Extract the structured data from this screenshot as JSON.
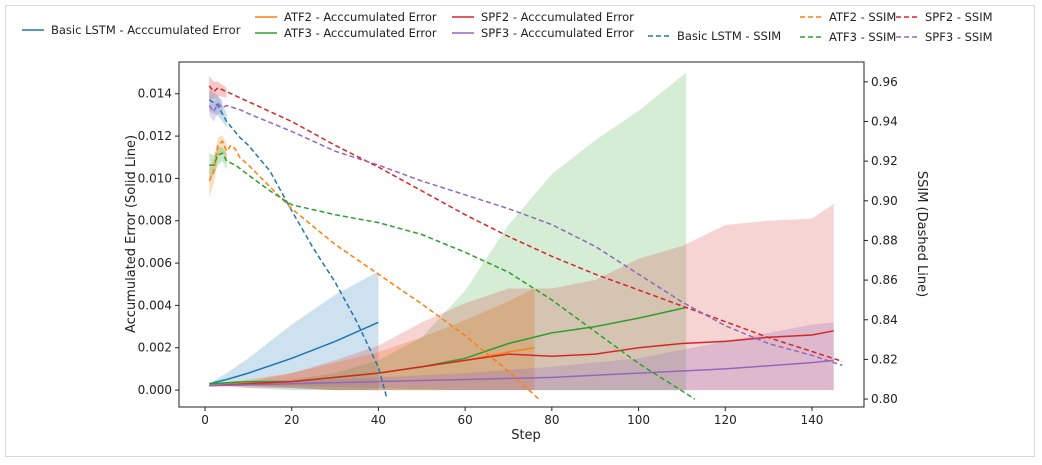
{
  "chart_data": {
    "type": "line",
    "xlabel": "Step",
    "ylabel_left": "Accumulated Error (Solid Line)",
    "ylabel_right": "SSIM (Dashed Line)",
    "xlim": [
      -6,
      152
    ],
    "ylim_left": [
      -0.0008,
      0.0155
    ],
    "ylim_right": [
      0.796,
      0.97
    ],
    "x_ticks": [
      0,
      20,
      40,
      60,
      80,
      100,
      120,
      140
    ],
    "y_left_ticks": [
      0.0,
      0.002,
      0.004,
      0.006,
      0.008,
      0.01,
      0.012,
      0.014
    ],
    "y_left_tick_labels": [
      "0.000",
      "0.002",
      "0.004",
      "0.006",
      "0.008",
      "0.010",
      "0.012",
      "0.014"
    ],
    "y_right_ticks": [
      0.8,
      0.82,
      0.84,
      0.86,
      0.88,
      0.9,
      0.92,
      0.94,
      0.96
    ],
    "y_right_tick_labels": [
      "0.80",
      "0.82",
      "0.84",
      "0.86",
      "0.88",
      "0.90",
      "0.92",
      "0.94",
      "0.96"
    ],
    "grid": false,
    "legend_position": "top",
    "legend": [
      {
        "label": "Basic LSTM - Acccumulated Error",
        "color": "#1f77b4",
        "style": "solid"
      },
      {
        "label": "ATF2 - Acccumulated Error",
        "color": "#ff7f0e",
        "style": "solid"
      },
      {
        "label": "ATF3 - Acccumulated Error",
        "color": "#2ca02c",
        "style": "solid"
      },
      {
        "label": "SPF2 - Acccumulated Error",
        "color": "#d62728",
        "style": "solid"
      },
      {
        "label": "SPF3 - Acccumulated Error",
        "color": "#9467bd",
        "style": "solid"
      },
      {
        "label": "Basic LSTM - SSIM",
        "color": "#1f77b4",
        "style": "dashed"
      },
      {
        "label": "ATF2 - SSIM",
        "color": "#ff7f0e",
        "style": "dashed"
      },
      {
        "label": "ATF3 - SSIM",
        "color": "#2ca02c",
        "style": "dashed"
      },
      {
        "label": "SPF2 - SSIM",
        "color": "#d62728",
        "style": "dashed"
      },
      {
        "label": "SPF3 - SSIM",
        "color": "#9467bd",
        "style": "dashed"
      }
    ],
    "error_series": [
      {
        "id": "basic",
        "color": "#1f77b4",
        "band_opacity": 0.22,
        "x": [
          1,
          5,
          10,
          20,
          30,
          40
        ],
        "y": [
          0.0003,
          0.0005,
          0.0008,
          0.0015,
          0.0023,
          0.0032
        ],
        "upper": [
          0.0003,
          0.0008,
          0.0015,
          0.0031,
          0.0045,
          0.0056
        ],
        "lower": [
          0.0002,
          0.0002,
          0.0001,
          0.0,
          0.0,
          0.0
        ]
      },
      {
        "id": "atf2",
        "color": "#ff7f0e",
        "band_opacity": 0.28,
        "x": [
          1,
          10,
          20,
          30,
          40,
          50,
          60,
          70,
          76
        ],
        "y": [
          0.0002,
          0.0003,
          0.0004,
          0.0006,
          0.0008,
          0.0011,
          0.0014,
          0.0018,
          0.002
        ],
        "upper": [
          0.0003,
          0.0005,
          0.0008,
          0.0013,
          0.0018,
          0.0025,
          0.0033,
          0.0042,
          0.0048
        ],
        "lower": [
          0.0002,
          0.0001,
          0.0001,
          0.0,
          0.0,
          0.0,
          0.0,
          0.0,
          0.0
        ]
      },
      {
        "id": "atf3",
        "color": "#2ca02c",
        "band_opacity": 0.2,
        "x": [
          1,
          10,
          20,
          30,
          40,
          50,
          60,
          70,
          80,
          90,
          100,
          111
        ],
        "y": [
          0.0003,
          0.0004,
          0.0004,
          0.0006,
          0.0008,
          0.0011,
          0.0015,
          0.0022,
          0.0027,
          0.003,
          0.0034,
          0.0039
        ],
        "upper": [
          0.0003,
          0.0004,
          0.0005,
          0.0008,
          0.0014,
          0.0025,
          0.0047,
          0.0078,
          0.0102,
          0.0118,
          0.0132,
          0.015
        ],
        "lower": [
          0.0002,
          0.0002,
          0.0001,
          0.0,
          0.0,
          0.0,
          0.0,
          0.0,
          0.0,
          0.0,
          0.0,
          0.0
        ]
      },
      {
        "id": "spf2",
        "color": "#d62728",
        "band_opacity": 0.2,
        "x": [
          1,
          10,
          20,
          30,
          40,
          50,
          60,
          70,
          80,
          90,
          100,
          110,
          120,
          130,
          140,
          145
        ],
        "y": [
          0.0002,
          0.0003,
          0.0004,
          0.0006,
          0.0008,
          0.0011,
          0.0014,
          0.0017,
          0.0016,
          0.0017,
          0.002,
          0.0022,
          0.0023,
          0.0025,
          0.0026,
          0.0028
        ],
        "upper": [
          0.0003,
          0.0004,
          0.0008,
          0.0014,
          0.0021,
          0.0032,
          0.0041,
          0.0048,
          0.0048,
          0.0052,
          0.0062,
          0.0068,
          0.0078,
          0.008,
          0.0081,
          0.0088
        ],
        "lower": [
          0.0002,
          0.0002,
          0.0001,
          0.0,
          0.0,
          0.0,
          0.0,
          0.0,
          0.0,
          0.0,
          0.0,
          0.0,
          0.0,
          0.0,
          0.0,
          0.0
        ]
      },
      {
        "id": "spf3",
        "color": "#9467bd",
        "band_opacity": 0.25,
        "x": [
          1,
          20,
          40,
          60,
          80,
          100,
          120,
          140,
          145
        ],
        "y": [
          0.0002,
          0.0003,
          0.0004,
          0.0005,
          0.0006,
          0.0008,
          0.001,
          0.0013,
          0.0014
        ],
        "upper": [
          0.0002,
          0.0004,
          0.0006,
          0.0008,
          0.0011,
          0.0015,
          0.0023,
          0.0031,
          0.0032
        ],
        "lower": [
          0.0002,
          0.0002,
          0.0001,
          0.0,
          0.0,
          0.0,
          0.0,
          0.0,
          0.0
        ]
      }
    ],
    "ssim_series": [
      {
        "id": "basic",
        "color": "#1f77b4",
        "x": [
          1,
          3,
          5,
          8,
          10,
          15,
          20,
          25,
          30,
          35,
          40,
          42
        ],
        "y": [
          0.951,
          0.948,
          0.94,
          0.932,
          0.928,
          0.915,
          0.895,
          0.876,
          0.859,
          0.839,
          0.816,
          0.8
        ],
        "band_upper": [
          0.956,
          0.953,
          0.944
        ],
        "band_lower": [
          0.945,
          0.943,
          0.937
        ]
      },
      {
        "id": "atf2",
        "color": "#ff7f0e",
        "x": [
          1,
          2,
          3,
          4,
          5,
          6,
          7,
          8,
          10,
          15,
          20,
          30,
          40,
          50,
          60,
          70,
          77
        ],
        "y": [
          0.91,
          0.915,
          0.928,
          0.93,
          0.925,
          0.928,
          0.926,
          0.922,
          0.918,
          0.907,
          0.896,
          0.878,
          0.863,
          0.848,
          0.832,
          0.814,
          0.8
        ],
        "band_upper": [
          0.916,
          0.921,
          0.932,
          0.933,
          0.929
        ],
        "band_lower": [
          0.902,
          0.908,
          0.922,
          0.925,
          0.92
        ]
      },
      {
        "id": "atf3",
        "color": "#2ca02c",
        "x": [
          1,
          2,
          3,
          4,
          5,
          6,
          7,
          10,
          15,
          20,
          30,
          40,
          50,
          60,
          70,
          80,
          90,
          100,
          113
        ],
        "y": [
          0.918,
          0.918,
          0.923,
          0.924,
          0.92,
          0.919,
          0.918,
          0.913,
          0.905,
          0.898,
          0.893,
          0.889,
          0.883,
          0.874,
          0.864,
          0.85,
          0.834,
          0.818,
          0.8
        ],
        "band_upper": [
          0.924,
          0.923,
          0.927,
          0.927,
          0.924
        ],
        "band_lower": [
          0.911,
          0.913,
          0.918,
          0.92,
          0.916
        ]
      },
      {
        "id": "spf2",
        "color": "#d62728",
        "x": [
          1,
          2,
          3,
          5,
          8,
          10,
          20,
          30,
          40,
          50,
          60,
          70,
          80,
          90,
          100,
          110,
          120,
          130,
          140,
          147
        ],
        "y": [
          0.958,
          0.955,
          0.957,
          0.955,
          0.952,
          0.95,
          0.94,
          0.928,
          0.917,
          0.905,
          0.893,
          0.882,
          0.872,
          0.863,
          0.855,
          0.847,
          0.839,
          0.831,
          0.824,
          0.819
        ],
        "band_upper": [
          0.963,
          0.96,
          0.96,
          0.957
        ],
        "band_lower": [
          0.952,
          0.951,
          0.953,
          0.952
        ]
      },
      {
        "id": "spf3",
        "color": "#9467bd",
        "x": [
          1,
          2,
          3,
          4,
          5,
          8,
          10,
          20,
          30,
          40,
          50,
          60,
          70,
          80,
          90,
          100,
          110,
          120,
          130,
          140,
          147
        ],
        "y": [
          0.948,
          0.945,
          0.949,
          0.947,
          0.948,
          0.946,
          0.944,
          0.935,
          0.925,
          0.918,
          0.91,
          0.903,
          0.896,
          0.888,
          0.877,
          0.863,
          0.849,
          0.837,
          0.828,
          0.822,
          0.817
        ],
        "band_upper": [
          0.953,
          0.95,
          0.953,
          0.951
        ],
        "band_lower": [
          0.943,
          0.94,
          0.944,
          0.943
        ]
      }
    ]
  }
}
